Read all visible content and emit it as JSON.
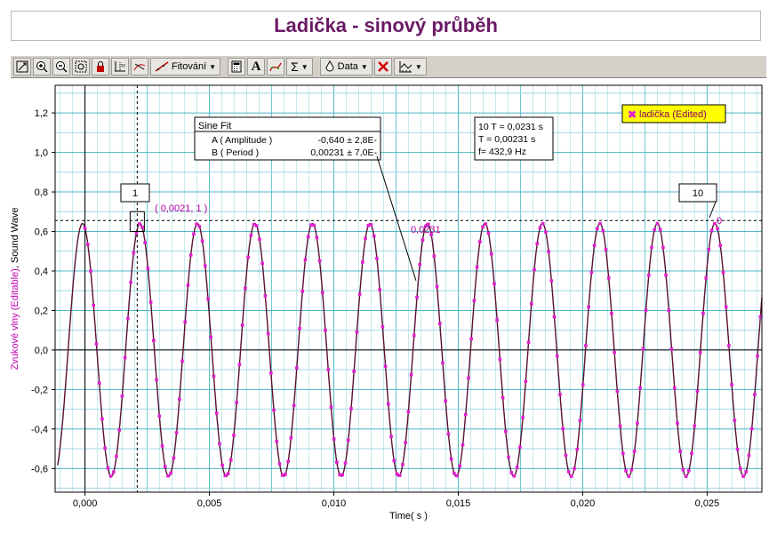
{
  "title": "Ladička - sinový průběh",
  "toolbar": {
    "fit_label": "Fitování",
    "data_label": "Data",
    "font_label": "A",
    "sigma_label": "Σ",
    "icons": [
      "autoscale-icon",
      "zoom-in-icon",
      "zoom-out-icon",
      "zoom-select-icon",
      "lock-icon",
      "examine-icon",
      "tangent-icon",
      "linear-fit-icon",
      "fit-icon",
      "calculator-icon",
      "font-icon",
      "curve-fit-icon",
      "statistics-icon",
      "data-icon",
      "delete-icon",
      "graph-options-icon"
    ]
  },
  "chart_data": {
    "type": "line",
    "xlabel": "Time( s )",
    "ylabel_parts": [
      "Zvukové vlny (Editable)",
      ", ",
      "Sound Wave"
    ],
    "xlim": [
      -0.0012,
      0.0272
    ],
    "ylim": [
      -0.72,
      1.34
    ],
    "xticks": [
      0.0,
      0.005,
      0.01,
      0.015,
      0.02,
      0.025
    ],
    "xtick_labels": [
      "0,000",
      "0,005",
      "0,010",
      "0,015",
      "0,020",
      "0,025"
    ],
    "yticks": [
      -0.6,
      -0.4,
      -0.2,
      0.0,
      0.2,
      0.4,
      0.6,
      0.8,
      1.0,
      1.2
    ],
    "ytick_labels": [
      "-0,6",
      "-0,4",
      "-0,2",
      "0,0",
      "0,2",
      "0,4",
      "0,6",
      "0,8",
      "1,0",
      "1,2"
    ],
    "grid": true,
    "legend": {
      "label": "ladička (Edited)",
      "placement": "top-right"
    },
    "series": [
      {
        "name": "ladička (Edited)",
        "kind": "markers",
        "color": "#e020d0",
        "amplitude": 0.64,
        "period": 0.00231,
        "peak_time": 0.0021,
        "x_start": -0.0012,
        "x_end": 0.0272
      }
    ],
    "data_start": {
      "amplitude": 0.64,
      "period": 0.00231,
      "peak_time": -0.0001,
      "x_start": -0.0011
    },
    "vertical_marker_x": 0.0021,
    "horizontal_ref_y": 0.655,
    "sine_fit": {
      "title": "Sine Fit",
      "rows": [
        {
          "name": "A ( Amplitude )",
          "value": "-0,640 ± 2,8E-"
        },
        {
          "name": "B ( Period )",
          "value": "0,00231 ± 7,0E-"
        }
      ]
    },
    "info_box": [
      "10 T = 0,0231 s",
      "T = 0,00231 s",
      "f= 432,9 Hz"
    ],
    "annotations": {
      "marker1": "1",
      "marker10": "10",
      "coord": "( 0,0021, 1 )",
      "delta": "0,0231",
      "zero_end": "0"
    }
  }
}
